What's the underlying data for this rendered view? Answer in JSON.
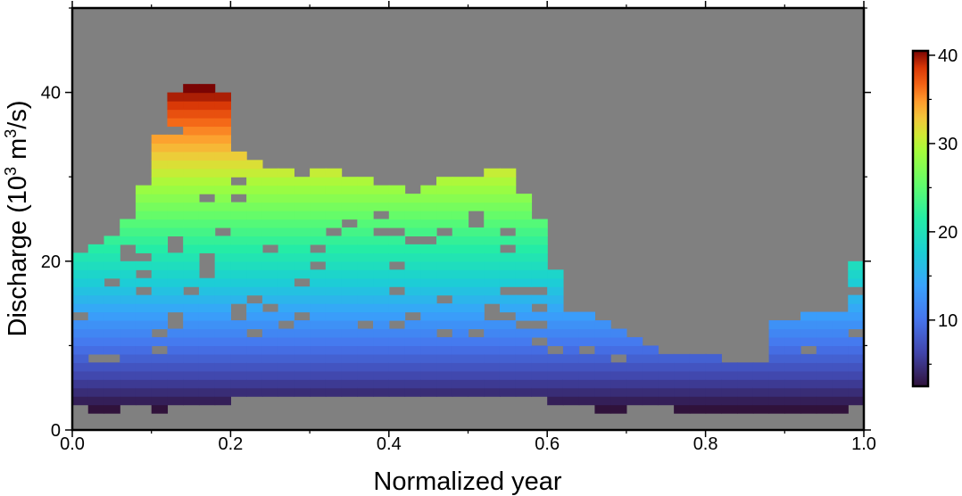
{
  "chart_data": {
    "type": "heatmap",
    "title": "",
    "xlabel": "Normalized year",
    "ylabel_main": "Discharge (10",
    "ylabel_sup": "3",
    "ylabel_mid": " m",
    "ylabel_sup2": "3",
    "ylabel_end": "/s)",
    "xlim": [
      0,
      1
    ],
    "ylim": [
      0,
      50
    ],
    "x_ticks": [
      "0.0",
      "0.2",
      "0.4",
      "0.6",
      "0.8",
      "1.0"
    ],
    "y_ticks": [
      "0",
      "20",
      "40"
    ],
    "background_color": "#808080",
    "colorscale": "turbo",
    "colorbar": {
      "min": 2.5,
      "max": 40.5,
      "ticks": [
        "10",
        "20",
        "30",
        "40"
      ]
    },
    "grid": false,
    "x_bins": 50,
    "y_bin_width": 1,
    "envelope": {
      "x": [
        0.0,
        0.02,
        0.04,
        0.06,
        0.08,
        0.1,
        0.12,
        0.14,
        0.16,
        0.18,
        0.2,
        0.22,
        0.24,
        0.26,
        0.28,
        0.3,
        0.32,
        0.34,
        0.36,
        0.38,
        0.4,
        0.42,
        0.44,
        0.46,
        0.48,
        0.5,
        0.52,
        0.54,
        0.56,
        0.58,
        0.6,
        0.62,
        0.64,
        0.66,
        0.68,
        0.7,
        0.72,
        0.74,
        0.76,
        0.78,
        0.8,
        0.82,
        0.84,
        0.86,
        0.88,
        0.9,
        0.92,
        0.94,
        0.96,
        0.98
      ],
      "low": [
        3,
        2,
        2,
        3,
        3,
        2,
        3,
        3,
        3,
        3,
        4,
        4,
        4,
        4,
        4,
        4,
        4,
        4,
        4,
        4,
        4,
        4,
        4,
        4,
        4,
        4,
        4,
        4,
        4,
        4,
        3,
        3,
        3,
        2,
        2,
        3,
        3,
        3,
        2,
        2,
        2,
        2,
        2,
        2,
        2,
        2,
        2,
        2,
        2,
        3
      ],
      "high": [
        21,
        22,
        23,
        25,
        29,
        35,
        40,
        41,
        41,
        40,
        33,
        32,
        31,
        31,
        30,
        31,
        31,
        30,
        30,
        29,
        29,
        28,
        29,
        30,
        30,
        30,
        31,
        31,
        28,
        25,
        19,
        14,
        14,
        13,
        12,
        11,
        10,
        9,
        9,
        9,
        9,
        8,
        8,
        8,
        13,
        13,
        14,
        14,
        14,
        20
      ]
    }
  }
}
